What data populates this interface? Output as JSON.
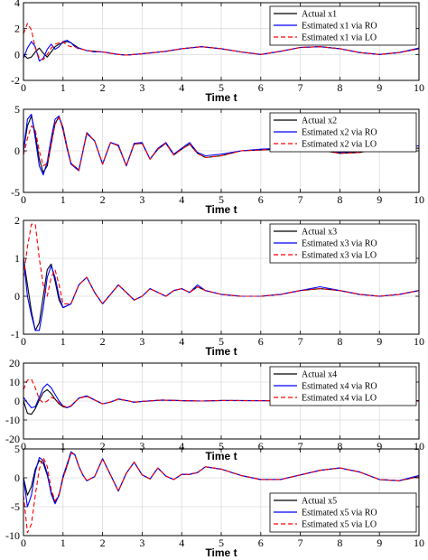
{
  "chart_data": [
    {
      "type": "line",
      "xlabel": "Time t",
      "xlim": [
        0,
        10
      ],
      "ylim": [
        -2,
        4
      ],
      "xticks": [
        0,
        1,
        2,
        3,
        4,
        5,
        6,
        7,
        8,
        9,
        10
      ],
      "yticks": [
        -2,
        0,
        2,
        4
      ],
      "grid": true,
      "legend_position": "top-right",
      "x": [
        0,
        0.1,
        0.2,
        0.3,
        0.4,
        0.5,
        0.6,
        0.7,
        0.8,
        0.9,
        1.0,
        1.1,
        1.2,
        1.3,
        1.4,
        1.5,
        1.6,
        1.8,
        2.0,
        2.2,
        2.4,
        2.6,
        2.8,
        3.0,
        3.3,
        3.6,
        4.0,
        4.5,
        5.0,
        5.5,
        6.0,
        6.5,
        7.0,
        7.5,
        8.0,
        8.5,
        9.0,
        9.5,
        10.0
      ],
      "series": [
        {
          "name": "Actual x1",
          "color": "#000000",
          "dash": "solid",
          "values": [
            0,
            -0.3,
            -0.2,
            0.2,
            0.5,
            0.1,
            -0.2,
            0.2,
            0.6,
            0.8,
            0.9,
            1.0,
            0.9,
            0.7,
            0.5,
            0.4,
            0.3,
            0.25,
            0.2,
            0.1,
            0.0,
            -0.05,
            0.0,
            0.05,
            0.15,
            0.25,
            0.45,
            0.6,
            0.45,
            0.2,
            0.0,
            0.25,
            0.55,
            0.6,
            0.45,
            0.15,
            0.0,
            0.15,
            0.45
          ]
        },
        {
          "name": "Estimated x1 via RO",
          "color": "#0000ff",
          "dash": "solid",
          "values": [
            -0.3,
            0.5,
            1.0,
            0.6,
            -0.5,
            -0.3,
            0.4,
            0.8,
            0.4,
            0.6,
            1.0,
            1.1,
            0.9,
            0.6,
            0.5,
            0.4,
            0.3,
            0.2,
            0.2,
            0.1,
            0.0,
            -0.05,
            0.0,
            0.05,
            0.15,
            0.25,
            0.45,
            0.6,
            0.45,
            0.2,
            0.0,
            0.25,
            0.55,
            0.6,
            0.45,
            0.15,
            0.0,
            0.15,
            0.5
          ]
        },
        {
          "name": "Estimated x1 via LO",
          "color": "#ff0000",
          "dash": "dashed",
          "values": [
            1.6,
            2.4,
            1.9,
            0.5,
            -0.3,
            -0.4,
            0.0,
            0.5,
            0.8,
            0.9,
            1.0,
            0.7,
            0.6,
            0.6,
            0.4,
            0.4,
            0.3,
            0.25,
            0.2,
            0.1,
            0.0,
            -0.05,
            0.0,
            0.05,
            0.15,
            0.25,
            0.45,
            0.6,
            0.45,
            0.2,
            0.0,
            0.25,
            0.55,
            0.6,
            0.45,
            0.15,
            0.0,
            0.15,
            0.45
          ]
        }
      ]
    },
    {
      "type": "line",
      "xlabel": "Time t",
      "xlim": [
        0,
        10
      ],
      "ylim": [
        -5,
        5
      ],
      "xticks": [
        0,
        1,
        2,
        3,
        4,
        5,
        6,
        7,
        8,
        9,
        10
      ],
      "yticks": [
        -5,
        0,
        5
      ],
      "grid": true,
      "legend_position": "top-right",
      "x": [
        0,
        0.1,
        0.2,
        0.3,
        0.4,
        0.5,
        0.6,
        0.7,
        0.8,
        0.9,
        1.0,
        1.1,
        1.2,
        1.4,
        1.6,
        1.8,
        2.0,
        2.2,
        2.4,
        2.6,
        2.8,
        3.0,
        3.2,
        3.4,
        3.6,
        3.8,
        4.0,
        4.2,
        4.4,
        4.6,
        5.0,
        5.5,
        6.0,
        6.5,
        7.0,
        7.5,
        8.0,
        8.5,
        9.0,
        9.5,
        10.0
      ],
      "series": [
        {
          "name": "Actual x2",
          "color": "#000000",
          "dash": "solid",
          "values": [
            0,
            3.0,
            4.2,
            2.0,
            -1.0,
            -2.6,
            -1.8,
            0.8,
            3.3,
            4.1,
            2.8,
            0.5,
            -1.5,
            -2.3,
            2.1,
            1.2,
            -1.6,
            1.0,
            0.6,
            -1.8,
            0.8,
            0.9,
            -1.0,
            0.2,
            0.9,
            -0.5,
            0.2,
            0.8,
            -0.3,
            -0.8,
            -0.6,
            0.0,
            0.1,
            0.2,
            0.5,
            0.1,
            -0.3,
            -0.2,
            0.3,
            0.4,
            0.3
          ]
        },
        {
          "name": "Estimated x2 via RO",
          "color": "#0000ff",
          "dash": "solid",
          "values": [
            0,
            3.8,
            4.4,
            1.5,
            -1.8,
            -2.9,
            -1.3,
            1.5,
            3.8,
            4.2,
            2.5,
            0.3,
            -1.6,
            -2.4,
            2.2,
            1.2,
            -1.6,
            1.0,
            0.7,
            -1.8,
            0.9,
            1.0,
            -1.0,
            0.3,
            1.0,
            -0.4,
            0.3,
            1.0,
            -0.2,
            -0.6,
            -0.4,
            0.0,
            0.2,
            0.3,
            0.6,
            0.2,
            -0.2,
            -0.1,
            0.4,
            0.5,
            0.6
          ]
        },
        {
          "name": "Estimated x2 via LO",
          "color": "#ff0000",
          "dash": "dashed",
          "values": [
            -0.5,
            1.5,
            3.0,
            2.5,
            0.0,
            -1.8,
            -1.5,
            0.8,
            3.2,
            4.0,
            2.7,
            0.5,
            -1.5,
            -2.3,
            2.1,
            1.2,
            -1.6,
            1.0,
            0.6,
            -1.8,
            0.8,
            0.9,
            -1.0,
            0.2,
            0.9,
            -0.5,
            0.2,
            0.8,
            -0.3,
            -0.8,
            -0.6,
            0.0,
            0.1,
            0.2,
            0.5,
            0.1,
            -0.3,
            -0.2,
            0.3,
            0.4,
            0.3
          ]
        }
      ]
    },
    {
      "type": "line",
      "xlabel": "Time t",
      "xlim": [
        0,
        10
      ],
      "ylim": [
        -1,
        2
      ],
      "xticks": [
        0,
        1,
        2,
        3,
        4,
        5,
        6,
        7,
        8,
        9,
        10
      ],
      "yticks": [
        -1,
        0,
        1,
        2
      ],
      "grid": true,
      "legend_position": "top-right",
      "x": [
        0,
        0.1,
        0.2,
        0.3,
        0.4,
        0.5,
        0.6,
        0.7,
        0.8,
        0.9,
        1.0,
        1.2,
        1.4,
        1.6,
        1.8,
        2.0,
        2.2,
        2.4,
        2.6,
        2.8,
        3.0,
        3.2,
        3.4,
        3.6,
        3.8,
        4.0,
        4.2,
        4.4,
        4.6,
        5.0,
        5.5,
        6.0,
        6.5,
        7.0,
        7.5,
        8.0,
        8.5,
        9.0,
        9.5,
        10.0
      ],
      "series": [
        {
          "name": "Actual x3",
          "color": "#000000",
          "dash": "solid",
          "values": [
            1.0,
            0.3,
            -0.4,
            -0.9,
            -0.7,
            0.0,
            0.7,
            0.85,
            0.4,
            -0.1,
            -0.3,
            -0.2,
            0.3,
            0.5,
            0.1,
            -0.2,
            0.05,
            0.3,
            0.1,
            -0.1,
            0.0,
            0.2,
            0.1,
            0.0,
            0.15,
            0.2,
            0.1,
            0.25,
            0.15,
            0.05,
            0.0,
            0.0,
            0.05,
            0.15,
            0.2,
            0.15,
            0.05,
            0.0,
            0.05,
            0.15
          ]
        },
        {
          "name": "Estimated x3 via RO",
          "color": "#0000ff",
          "dash": "solid",
          "values": [
            1.0,
            0.0,
            -0.5,
            -0.9,
            -0.9,
            -0.3,
            0.5,
            0.8,
            0.5,
            0.0,
            -0.3,
            -0.2,
            0.3,
            0.5,
            0.1,
            -0.2,
            0.05,
            0.3,
            0.1,
            -0.1,
            0.0,
            0.2,
            0.1,
            0.0,
            0.15,
            0.2,
            0.1,
            0.3,
            0.15,
            0.05,
            0.0,
            0.0,
            0.05,
            0.15,
            0.25,
            0.15,
            0.05,
            0.0,
            0.05,
            0.15
          ]
        },
        {
          "name": "Estimated x3 via LO",
          "color": "#ff0000",
          "dash": "dashed",
          "values": [
            0.5,
            1.3,
            1.9,
            1.9,
            1.0,
            0.3,
            0.0,
            0.5,
            0.7,
            0.3,
            -0.2,
            -0.2,
            0.3,
            0.5,
            0.1,
            -0.2,
            0.05,
            0.3,
            0.1,
            -0.1,
            0.0,
            0.2,
            0.1,
            0.0,
            0.15,
            0.2,
            0.1,
            0.25,
            0.15,
            0.05,
            0.0,
            0.0,
            0.05,
            0.15,
            0.2,
            0.15,
            0.05,
            0.0,
            0.05,
            0.15
          ]
        }
      ]
    },
    {
      "type": "line",
      "xlabel": "Time t",
      "xlim": [
        0,
        10
      ],
      "ylim": [
        -20,
        20
      ],
      "xticks": [
        0,
        1,
        2,
        3,
        4,
        5,
        6,
        7,
        8,
        9,
        10
      ],
      "yticks": [
        -20,
        -10,
        0,
        10,
        20
      ],
      "grid": true,
      "legend_position": "top-right",
      "x": [
        0,
        0.1,
        0.2,
        0.3,
        0.4,
        0.5,
        0.6,
        0.7,
        0.8,
        0.9,
        1.0,
        1.1,
        1.2,
        1.4,
        1.6,
        1.8,
        2.0,
        2.2,
        2.4,
        2.6,
        2.8,
        3.0,
        3.5,
        4.0,
        4.5,
        5.0,
        6.0,
        7.0,
        8.0,
        9.0,
        10.0
      ],
      "series": [
        {
          "name": "Actual x4",
          "color": "#000000",
          "dash": "solid",
          "values": [
            0,
            -6.5,
            -7.0,
            -4.0,
            0.5,
            4.5,
            6.0,
            4.0,
            1.0,
            -1.5,
            -3.0,
            -3.5,
            -2.5,
            1.5,
            2.5,
            0.5,
            -1.5,
            -0.5,
            1.0,
            0.3,
            -0.6,
            -0.2,
            0.5,
            0.2,
            0.0,
            0.3,
            0.2,
            0.1,
            0.1,
            0.1,
            0.1
          ]
        },
        {
          "name": "Estimated x4 via RO",
          "color": "#0000ff",
          "dash": "solid",
          "values": [
            2.0,
            -1.0,
            -3.5,
            -3.0,
            2.0,
            7.0,
            9.0,
            7.0,
            3.5,
            0.0,
            -2.5,
            -3.5,
            -2.8,
            1.6,
            2.7,
            0.6,
            -1.5,
            -0.5,
            1.1,
            0.3,
            -0.6,
            -0.2,
            0.5,
            0.2,
            0.0,
            0.3,
            0.2,
            0.1,
            0.1,
            0.1,
            0.2
          ]
        },
        {
          "name": "Estimated x4 via LO",
          "color": "#ff0000",
          "dash": "dashed",
          "values": [
            6.0,
            11.0,
            11.5,
            7.0,
            1.0,
            -1.0,
            0.0,
            2.0,
            1.0,
            -1.0,
            -2.5,
            -3.3,
            -2.5,
            1.5,
            2.5,
            0.5,
            -1.5,
            -0.5,
            1.0,
            0.3,
            -0.6,
            -0.2,
            0.5,
            0.2,
            0.0,
            0.3,
            0.2,
            0.1,
            0.1,
            0.1,
            0.1
          ]
        }
      ]
    },
    {
      "type": "line",
      "xlabel": "Time t",
      "xlim": [
        0,
        10
      ],
      "ylim": [
        -10,
        5
      ],
      "xticks": [
        0,
        1,
        2,
        3,
        4,
        5,
        6,
        7,
        8,
        9,
        10
      ],
      "yticks": [
        -10,
        -5,
        0,
        5
      ],
      "grid": true,
      "legend_position": "bottom-right",
      "x": [
        0,
        0.1,
        0.2,
        0.3,
        0.4,
        0.5,
        0.6,
        0.7,
        0.8,
        0.9,
        1.0,
        1.1,
        1.2,
        1.3,
        1.4,
        1.5,
        1.6,
        1.8,
        2.0,
        2.2,
        2.4,
        2.6,
        2.8,
        3.0,
        3.2,
        3.4,
        3.6,
        3.8,
        4.0,
        4.2,
        4.4,
        4.6,
        5.0,
        5.5,
        6.0,
        6.5,
        7.0,
        7.5,
        8.0,
        8.5,
        9.0,
        9.5,
        10.0
      ],
      "series": [
        {
          "name": "Actual x5",
          "color": "#000000",
          "dash": "solid",
          "values": [
            0,
            -3.0,
            -1.5,
            1.5,
            3.0,
            2.5,
            0.5,
            -2.5,
            -4.3,
            -3.0,
            0.0,
            2.0,
            4.3,
            4.0,
            2.0,
            0.5,
            -0.5,
            0.2,
            3.3,
            0.5,
            -2.3,
            0.8,
            2.7,
            0.5,
            -0.2,
            1.7,
            0.3,
            -0.3,
            0.6,
            0.6,
            0.9,
            1.9,
            1.5,
            0.4,
            -0.3,
            -0.3,
            0.5,
            1.3,
            1.7,
            1.0,
            -0.3,
            -0.5,
            0.2
          ]
        },
        {
          "name": "Estimated x5 via RO",
          "color": "#0000ff",
          "dash": "solid",
          "values": [
            0,
            -5.0,
            -3.0,
            1.0,
            3.5,
            3.0,
            0.8,
            -2.8,
            -4.5,
            -3.0,
            0.3,
            2.3,
            4.5,
            4.0,
            2.0,
            0.5,
            -0.5,
            0.2,
            3.3,
            0.5,
            -2.3,
            0.8,
            2.7,
            0.5,
            -0.2,
            1.7,
            0.3,
            -0.3,
            0.6,
            0.6,
            0.9,
            1.9,
            1.5,
            0.4,
            -0.3,
            -0.3,
            0.5,
            1.3,
            1.7,
            1.0,
            -0.3,
            -0.5,
            0.4
          ]
        },
        {
          "name": "Estimated x5 via LO",
          "color": "#ff0000",
          "dash": "dashed",
          "values": [
            -3.0,
            -9.5,
            -8.0,
            -3.0,
            1.5,
            3.5,
            2.0,
            -2.0,
            -4.0,
            -2.8,
            0.0,
            2.0,
            4.3,
            4.0,
            2.0,
            0.5,
            -0.5,
            0.2,
            3.3,
            0.5,
            -2.3,
            0.8,
            2.7,
            0.5,
            -0.2,
            1.7,
            0.3,
            -0.3,
            0.6,
            0.6,
            0.9,
            1.9,
            1.5,
            0.4,
            -0.3,
            -0.3,
            0.5,
            1.3,
            1.7,
            1.0,
            -0.3,
            -0.5,
            0.2
          ]
        }
      ]
    }
  ]
}
